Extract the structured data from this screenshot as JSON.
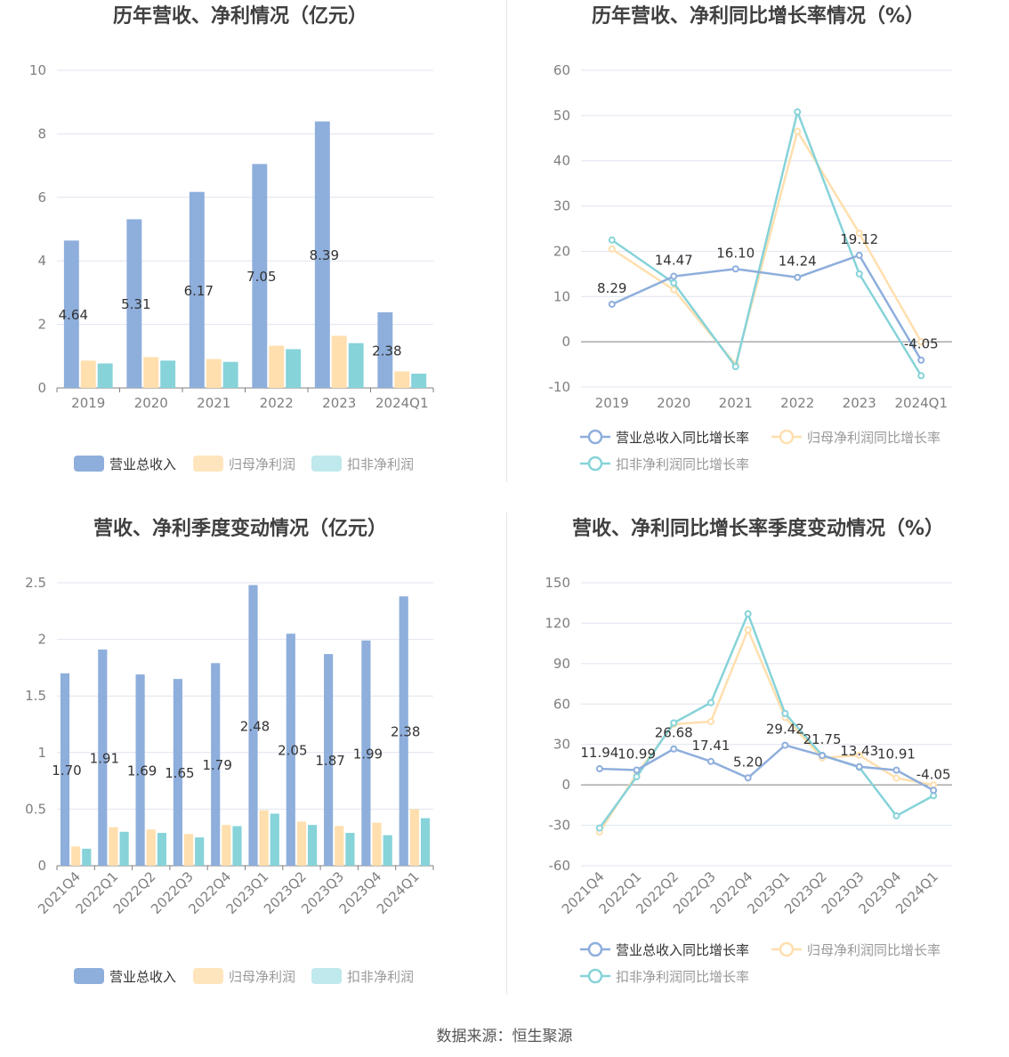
{
  "source": "数据来源：恒生聚源",
  "colors": {
    "revenue": "#8eaedc",
    "net_profit": "#ffdfae",
    "deducted_profit": "#86d3d9",
    "revenue_legend": "#8eaedc",
    "net_profit_legend": "#ffe5bd",
    "deducted_profit_legend": "#bfe9ec",
    "grid": "#e0e4ef",
    "axis_text": "#7f7f7f",
    "title": "#404040",
    "label": "#333333"
  },
  "chart_data": [
    {
      "type": "bar",
      "title": "历年营收、净利情况（亿元）",
      "categories": [
        "2019",
        "2020",
        "2021",
        "2022",
        "2023",
        "2024Q1"
      ],
      "ylim": [
        0,
        10
      ],
      "yticks": [
        0,
        2,
        4,
        6,
        8,
        10
      ],
      "grid": true,
      "legend": "bottom",
      "series": [
        {
          "name": "营业总收入",
          "values": [
            4.64,
            5.31,
            6.17,
            7.05,
            8.39,
            2.38
          ],
          "labels": [
            "4.64",
            "5.31",
            "6.17",
            "7.05",
            "8.39",
            "2.38"
          ]
        },
        {
          "name": "归母净利润",
          "values": [
            0.86,
            0.97,
            0.91,
            1.33,
            1.64,
            0.52
          ]
        },
        {
          "name": "扣非净利润",
          "values": [
            0.77,
            0.86,
            0.82,
            1.22,
            1.41,
            0.45
          ]
        }
      ]
    },
    {
      "type": "line",
      "title": "历年营收、净利同比增长率情况（%）",
      "categories": [
        "2019",
        "2020",
        "2021",
        "2022",
        "2023",
        "2024Q1"
      ],
      "ylim": [
        -10,
        60
      ],
      "yticks": [
        -10,
        0,
        10,
        20,
        30,
        40,
        50,
        60
      ],
      "grid": true,
      "legend": "bottom",
      "series": [
        {
          "name": "营业总收入同比增长率",
          "values": [
            8.29,
            14.47,
            16.1,
            14.24,
            19.12,
            -4.05
          ],
          "labels": [
            "8.29",
            "14.47",
            "16.10",
            "14.24",
            "19.12",
            "-4.05"
          ]
        },
        {
          "name": "归母净利润同比增长率",
          "values": [
            20.5,
            11.5,
            -5.0,
            46.5,
            24.0,
            0.0
          ]
        },
        {
          "name": "扣非净利润同比增长率",
          "values": [
            22.5,
            13.0,
            -5.5,
            50.8,
            15.0,
            -7.5
          ]
        }
      ]
    },
    {
      "type": "bar",
      "title": "营收、净利季度变动情况（亿元）",
      "categories": [
        "2021Q4",
        "2022Q1",
        "2022Q2",
        "2022Q3",
        "2022Q4",
        "2023Q1",
        "2023Q2",
        "2023Q3",
        "2023Q4",
        "2024Q1"
      ],
      "ylim": [
        0,
        2.5
      ],
      "yticks": [
        0,
        0.5,
        1,
        1.5,
        2,
        2.5
      ],
      "grid": true,
      "legend": "bottom",
      "series": [
        {
          "name": "营业总收入",
          "values": [
            1.7,
            1.91,
            1.69,
            1.65,
            1.79,
            2.48,
            2.05,
            1.87,
            1.99,
            2.38
          ],
          "labels": [
            "1.70",
            "1.91",
            "1.69",
            "1.65",
            "1.79",
            "2.48",
            "2.05",
            "1.87",
            "1.99",
            "2.38"
          ]
        },
        {
          "name": "归母净利润",
          "values": [
            0.17,
            0.34,
            0.32,
            0.28,
            0.36,
            0.49,
            0.39,
            0.35,
            0.38,
            0.5
          ]
        },
        {
          "name": "扣非净利润",
          "values": [
            0.15,
            0.3,
            0.29,
            0.25,
            0.35,
            0.46,
            0.36,
            0.29,
            0.27,
            0.42
          ]
        }
      ]
    },
    {
      "type": "line",
      "title": "营收、净利同比增长率季度变动情况（%）",
      "categories": [
        "2021Q4",
        "2022Q1",
        "2022Q2",
        "2022Q3",
        "2022Q4",
        "2023Q1",
        "2023Q2",
        "2023Q3",
        "2023Q4",
        "2024Q1"
      ],
      "ylim": [
        -60,
        150
      ],
      "yticks": [
        -60,
        -30,
        0,
        30,
        60,
        90,
        120,
        150
      ],
      "grid": true,
      "legend": "bottom",
      "series": [
        {
          "name": "营业总收入同比增长率",
          "values": [
            11.94,
            10.99,
            26.68,
            17.41,
            5.2,
            29.42,
            21.75,
            13.43,
            10.91,
            -4.05
          ],
          "labels": [
            "11.94",
            "10.99",
            "26.68",
            "17.41",
            "5.20",
            "29.42",
            "21.75",
            "13.43",
            "10.91",
            "-4.05"
          ]
        },
        {
          "name": "归母净利润同比增长率",
          "values": [
            -35,
            8,
            45,
            47,
            115,
            50,
            20,
            22,
            5,
            0
          ]
        },
        {
          "name": "扣非净利润同比增长率",
          "values": [
            -32,
            6,
            46,
            61,
            127,
            53,
            22,
            13,
            -23,
            -8
          ]
        }
      ]
    }
  ]
}
